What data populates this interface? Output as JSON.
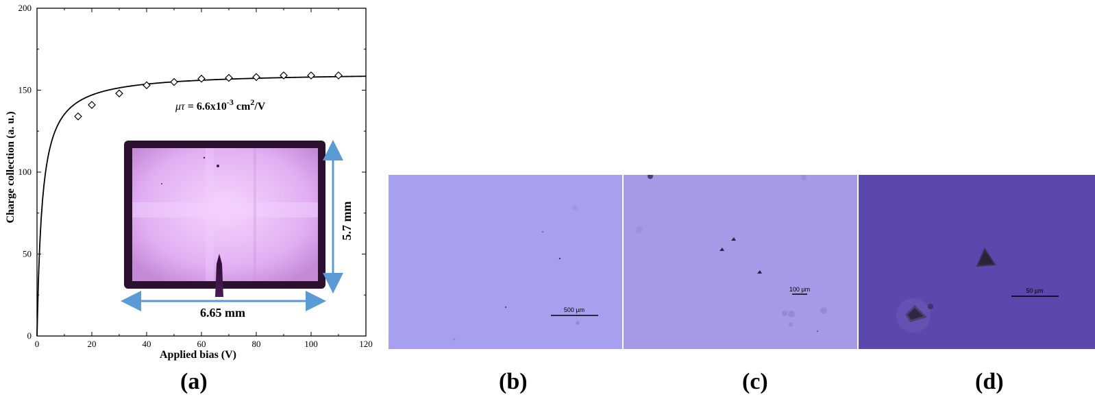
{
  "chart_data": {
    "type": "scatter",
    "xlabel": "Applied bias (V)",
    "ylabel": "Charge collection (a. u.)",
    "xlim": [
      0,
      120
    ],
    "ylim": [
      0,
      200
    ],
    "xticks": [
      0,
      20,
      40,
      60,
      80,
      100,
      120
    ],
    "yticks": [
      0,
      50,
      100,
      150,
      200
    ],
    "series": [
      {
        "marker": "diamond-open",
        "x": [
          15,
          20,
          30,
          40,
          50,
          60,
          70,
          80,
          90,
          100,
          110
        ],
        "y": [
          134,
          141,
          148,
          153,
          155,
          157,
          157.5,
          158,
          159,
          159,
          159
        ]
      }
    ],
    "fit_curve": {
      "style": "solid-line",
      "saturation": 161,
      "half_voltage": 1.9
    },
    "annotation": {
      "prefix": "μτ",
      "text": " = 6.6x10",
      "sup1": "-3",
      "text2": " cm",
      "sup2": "2",
      "text3": "/V"
    },
    "inset": {
      "width_label": "6.65 mm",
      "height_label": "5.7 mm"
    },
    "grid": false,
    "legend": "none"
  },
  "panels": {
    "a": "(a)",
    "b": "(b)",
    "c": "(c)",
    "d": "(d)"
  },
  "micrographs": {
    "b": {
      "scale_label": "500 µm",
      "color": "#a79ff0"
    },
    "c": {
      "scale_label": "100 µm",
      "color": "#a59ae8"
    },
    "d": {
      "scale_label": "50 µm",
      "color": "#5c48ad"
    }
  },
  "colors": {
    "arrow": "#5b9bd5",
    "crystal": "#e7b3f5"
  }
}
